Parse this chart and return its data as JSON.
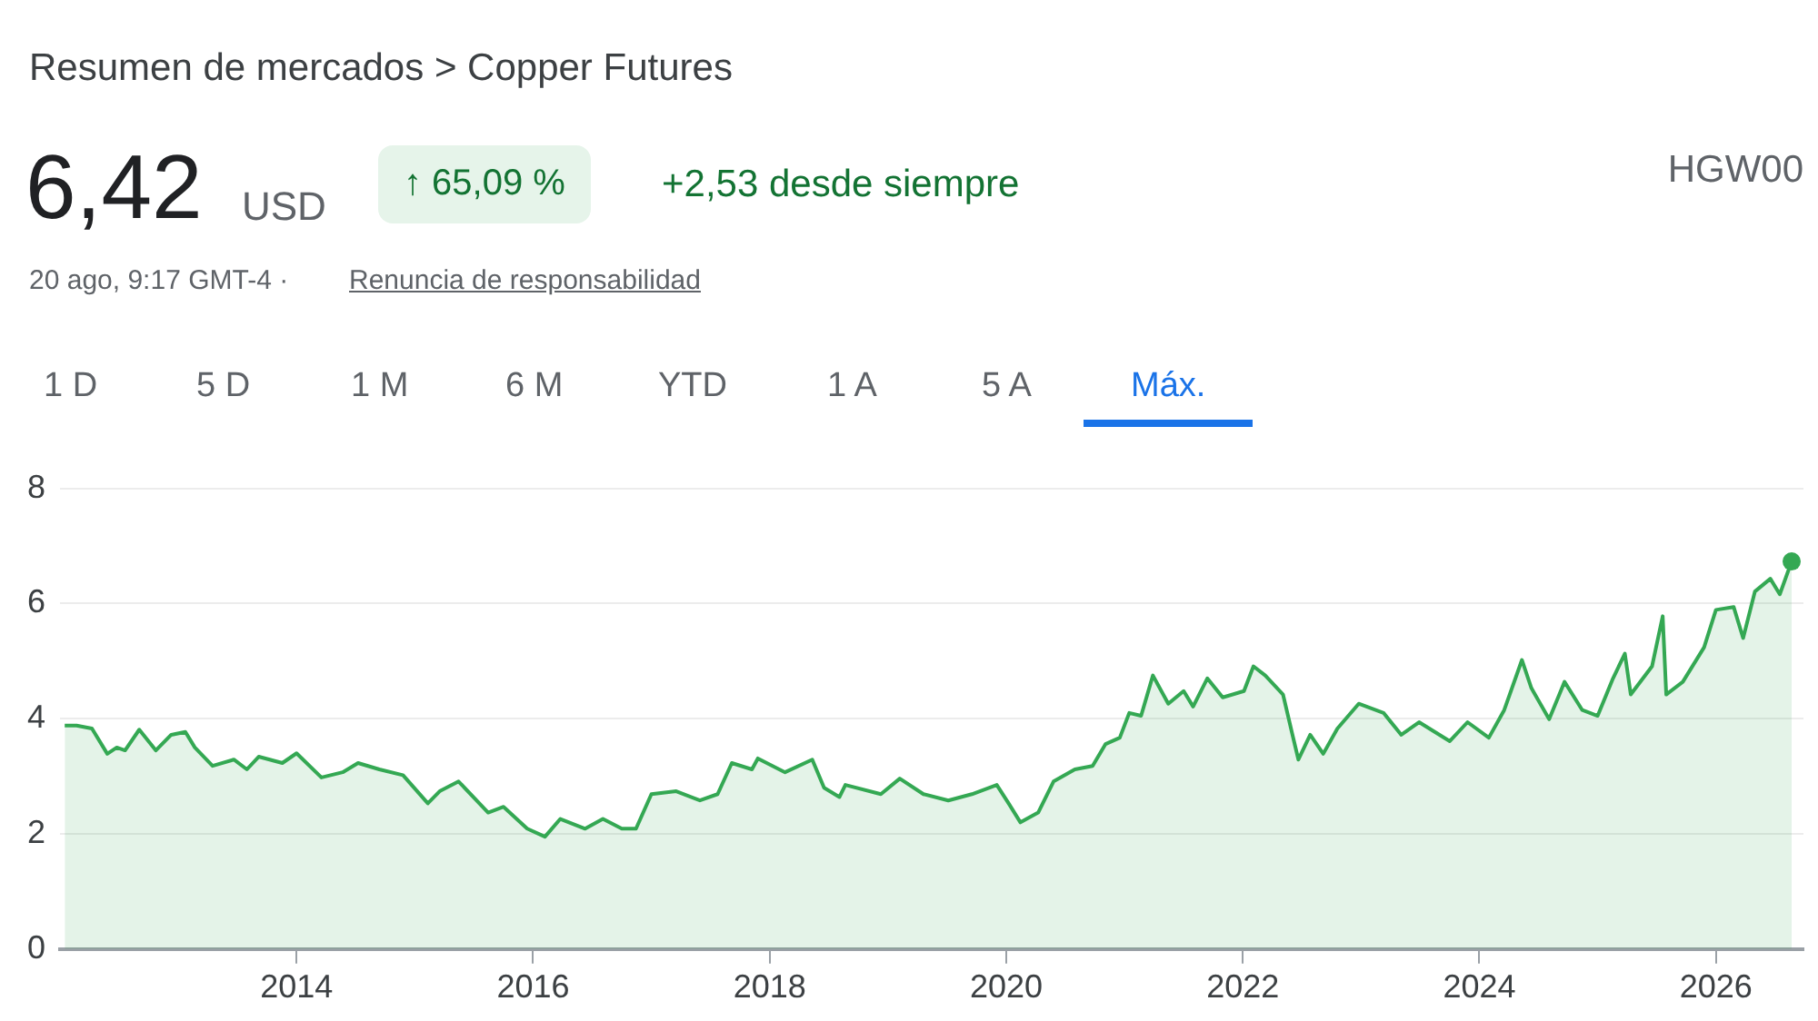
{
  "chart_data": {
    "type": "area",
    "title": "Resumen de mercados > Copper Futures",
    "annotations": [
      "6,42",
      "USD",
      "↑ 65,09 %",
      "+2,53 desde siempre",
      "20 ago, 9:17 GMT-4 ·",
      "Renuncia de responsabilidad",
      "HGW00",
      "1 D",
      "5 D",
      "1 M",
      "6 M",
      "YTD",
      "1 A",
      "5 A",
      "Máx."
    ],
    "x": [
      2012.04,
      2012.14,
      2012.27,
      2012.4,
      2012.48,
      2012.55,
      2012.67,
      2012.81,
      2012.94,
      2013.06,
      2013.14,
      2013.29,
      2013.47,
      2013.58,
      2013.68,
      2013.88,
      2014.0,
      2014.21,
      2014.39,
      2014.52,
      2014.7,
      2014.9,
      2015.11,
      2015.21,
      2015.37,
      2015.62,
      2015.75,
      2015.95,
      2016.1,
      2016.23,
      2016.44,
      2016.59,
      2016.75,
      2016.87,
      2017.0,
      2017.21,
      2017.41,
      2017.56,
      2017.68,
      2017.85,
      2017.9,
      2018.13,
      2018.36,
      2018.46,
      2018.59,
      2018.64,
      2018.94,
      2019.1,
      2019.3,
      2019.51,
      2019.71,
      2019.92,
      2020.02,
      2020.12,
      2020.27,
      2020.4,
      2020.58,
      2020.73,
      2020.84,
      2020.96,
      2021.04,
      2021.14,
      2021.24,
      2021.37,
      2021.5,
      2021.58,
      2021.7,
      2021.83,
      2022.01,
      2022.09,
      2022.19,
      2022.34,
      2022.42,
      2022.47,
      2022.57,
      2022.68,
      2022.8,
      2022.98,
      2023.19,
      2023.34,
      2023.49,
      2023.75,
      2023.9,
      2024.08,
      2024.21,
      2024.36,
      2024.44,
      2024.59,
      2024.72,
      2024.87,
      2025.0,
      2025.13,
      2025.23,
      2025.28,
      2025.46,
      2025.55,
      2025.58,
      2025.72,
      2025.9,
      2026.0,
      2026.15,
      2026.23,
      2026.33,
      2026.46,
      2026.54,
      2026.64
    ],
    "series": [
      {
        "color": "#34a853",
        "values": [
          3.88,
          3.88,
          3.83,
          3.39,
          3.5,
          3.45,
          3.81,
          3.45,
          3.72,
          3.77,
          3.5,
          3.18,
          3.29,
          3.12,
          3.34,
          3.23,
          3.4,
          2.98,
          3.07,
          3.23,
          3.12,
          3.02,
          2.53,
          2.74,
          2.91,
          2.37,
          2.47,
          2.09,
          1.95,
          2.26,
          2.09,
          2.26,
          2.09,
          2.09,
          2.69,
          2.74,
          2.58,
          2.69,
          3.23,
          3.12,
          3.31,
          3.07,
          3.29,
          2.8,
          2.64,
          2.85,
          2.69,
          2.96,
          2.69,
          2.58,
          2.69,
          2.85,
          2.53,
          2.2,
          2.37,
          2.91,
          3.12,
          3.18,
          3.56,
          3.67,
          4.1,
          4.05,
          4.75,
          4.26,
          4.48,
          4.21,
          4.7,
          4.37,
          4.48,
          4.91,
          4.75,
          4.42,
          3.72,
          3.29,
          3.72,
          3.39,
          3.83,
          4.26,
          4.1,
          3.72,
          3.94,
          3.61,
          3.94,
          3.67,
          4.15,
          5.02,
          4.53,
          3.99,
          4.64,
          4.15,
          4.05,
          4.7,
          5.13,
          4.42,
          4.91,
          5.78,
          4.42,
          4.64,
          5.24,
          5.89,
          5.94,
          5.4,
          6.21,
          6.43,
          6.16,
          6.73
        ]
      }
    ],
    "xlim": [
      2012.0,
      2026.74
    ],
    "xticks": [
      2014,
      2016,
      2018,
      2020,
      2022,
      2024,
      2026
    ],
    "ylim": [
      0,
      8
    ],
    "yticks": [
      0,
      2,
      4,
      6,
      8
    ],
    "grid": "y",
    "legend": false,
    "marker": "none",
    "line_style": "solid"
  }
}
